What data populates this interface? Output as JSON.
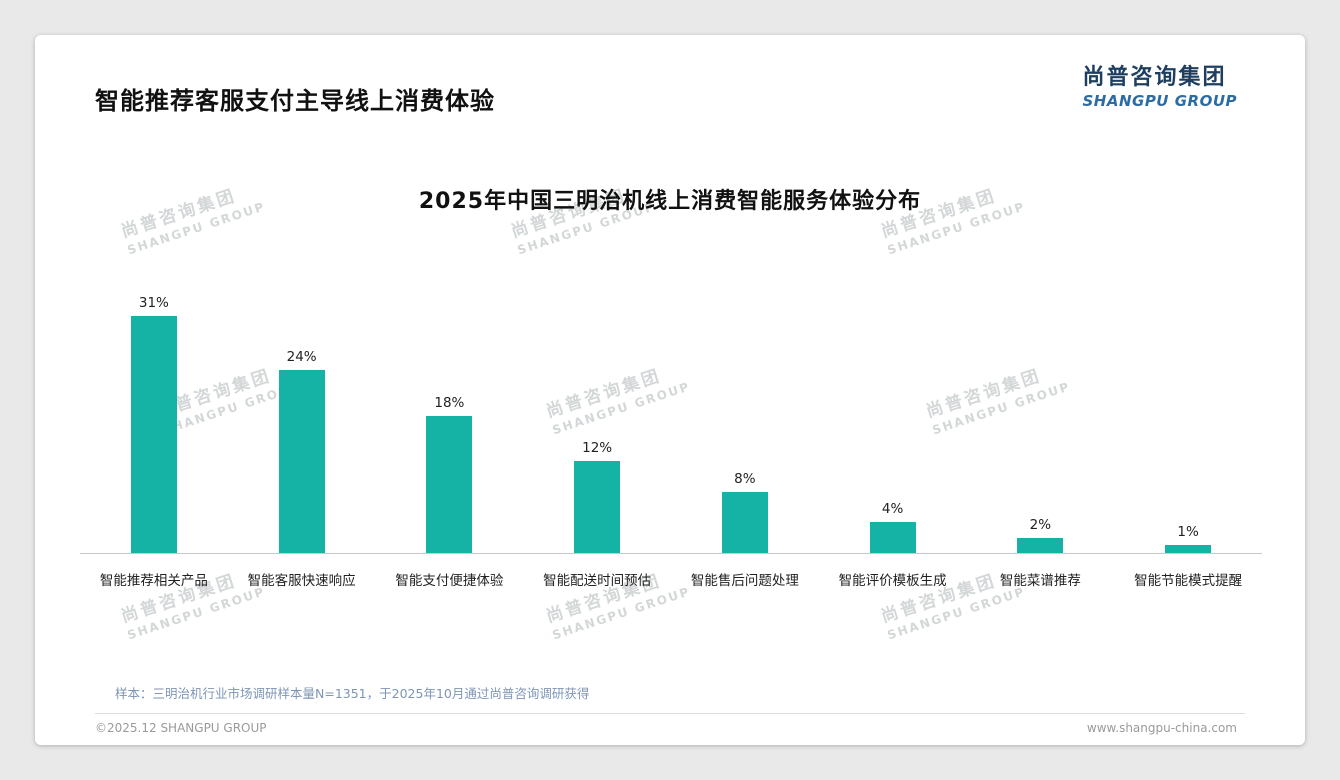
{
  "page": {
    "title": "智能推荐客服支付主导线上消费体验",
    "logo": {
      "cn": "尚普咨询集团",
      "en": "SHANGPU GROUP"
    },
    "watermark": {
      "cn": "尚普咨询集团",
      "en": "SHANGPU GROUP"
    },
    "note": "样本：三明治机行业市场调研样本量N=1351，于2025年10月通过尚普咨询调研获得",
    "footer_left": "©2025.12 SHANGPU GROUP",
    "footer_right": "www.shangpu-china.com"
  },
  "chart_data": {
    "type": "bar",
    "title": "2025年中国三明治机线上消费智能服务体验分布",
    "categories": [
      "智能推荐相关产品",
      "智能客服快速响应",
      "智能支付便捷体验",
      "智能配送时间预估",
      "智能售后问题处理",
      "智能评价模板生成",
      "智能菜谱推荐",
      "智能节能模式提醒"
    ],
    "values": [
      31,
      24,
      18,
      12,
      8,
      4,
      2,
      1
    ],
    "unit": "%",
    "bar_color": "#14b3a6",
    "ylim": [
      0,
      33
    ],
    "grid": false,
    "legend": "none",
    "data_labels": true,
    "xlabel": "",
    "ylabel": ""
  }
}
